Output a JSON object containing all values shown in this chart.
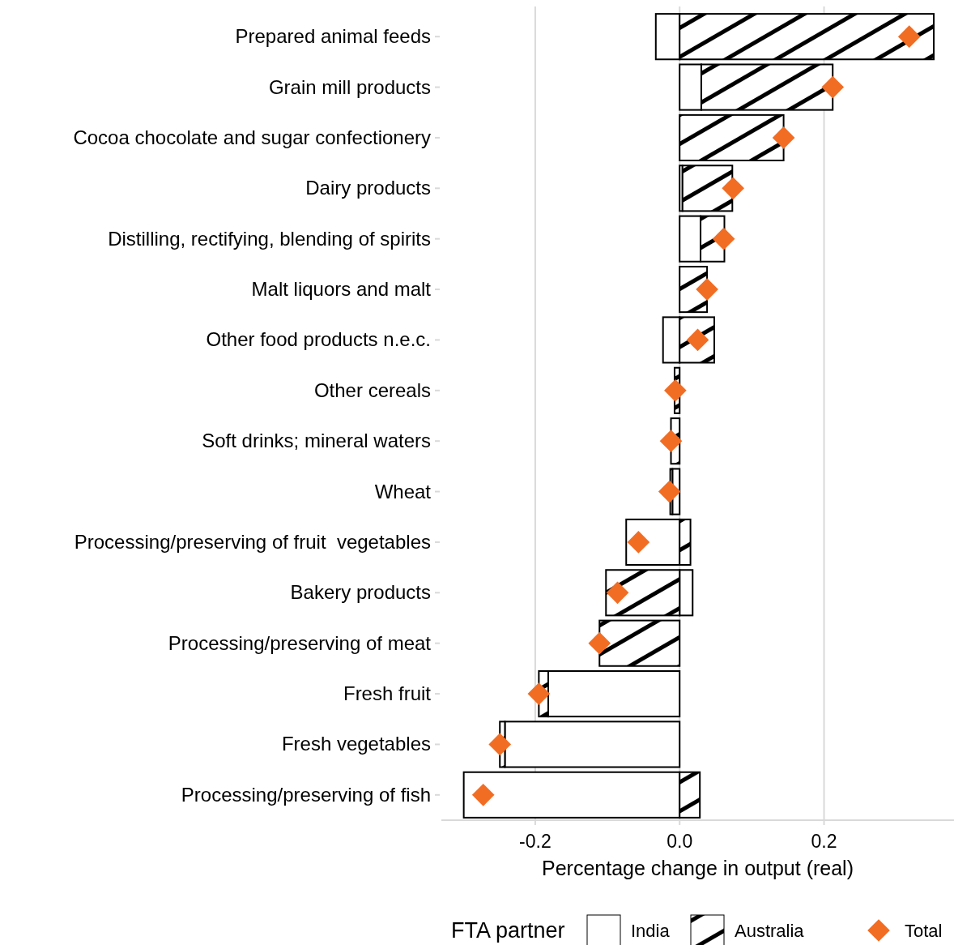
{
  "chart_data": {
    "type": "bar",
    "orientation": "horizontal",
    "stacked": true,
    "xlabel": "Percentage change in output (real)",
    "legend_title": "FTA  partner",
    "legend": "bottom",
    "grid": "x",
    "marker": "diamond",
    "categories": [
      "Prepared animal feeds",
      "Grain mill products",
      "Cocoa chocolate and sugar confectionery",
      "Dairy products",
      "Distilling, rectifying, blending of spirits",
      "Malt liquors and malt",
      "Other food products n.e.c.",
      "Other cereals",
      "Soft drinks; mineral waters",
      "Wheat",
      "Processing/preserving of fruit  vegetables",
      "Bakery products",
      "Processing/preserving of meat",
      "Fresh fruit",
      "Fresh vegetables",
      "Processing/preserving of fish"
    ],
    "xlim": [
      -0.33,
      0.38
    ],
    "xticks": [
      -0.2,
      {
        "value": 0,
        "label": "0.0"
      },
      0.2
    ],
    "series": [
      {
        "name": "India",
        "color": "#ffffff",
        "values": [
          -0.033,
          0.03,
          0,
          0.004,
          0.029,
          0,
          -0.023,
          0,
          0,
          -0.01,
          -0.074,
          0.018,
          0,
          -0.182,
          -0.242,
          -0.299
        ]
      },
      {
        "name": "Australia",
        "color": "#000000",
        "values": [
          0.352,
          0.182,
          0.144,
          0.069,
          0.033,
          0.038,
          0.048,
          -0.007,
          -0.012,
          -0.003,
          0.015,
          -0.102,
          -0.111,
          -0.013,
          -0.007,
          0.028
        ]
      },
      {
        "name": "Total",
        "type": "scatter",
        "color": "#f26d24",
        "values": [
          0.318,
          0.212,
          0.144,
          0.074,
          0.061,
          0.038,
          0.025,
          -0.006,
          -0.012,
          -0.014,
          -0.057,
          -0.086,
          -0.111,
          -0.195,
          -0.249,
          -0.272
        ]
      }
    ]
  }
}
